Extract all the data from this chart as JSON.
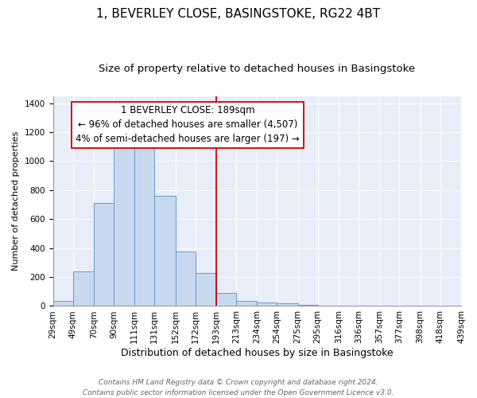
{
  "title": "1, BEVERLEY CLOSE, BASINGSTOKE, RG22 4BT",
  "subtitle": "Size of property relative to detached houses in Basingstoke",
  "xlabel": "Distribution of detached houses by size in Basingstoke",
  "ylabel": "Number of detached properties",
  "bar_left_edges": [
    29,
    49,
    70,
    90,
    111,
    131,
    152,
    172,
    193,
    213,
    234,
    254,
    275,
    295,
    316,
    336,
    357,
    377,
    398,
    418
  ],
  "bar_widths": [
    20,
    21,
    20,
    21,
    20,
    21,
    20,
    21,
    20,
    21,
    20,
    21,
    20,
    21,
    20,
    21,
    20,
    21,
    20,
    21
  ],
  "bar_heights": [
    35,
    240,
    710,
    1100,
    1115,
    760,
    375,
    230,
    90,
    35,
    25,
    20,
    10,
    5,
    0,
    5,
    0,
    0,
    0,
    0
  ],
  "bar_color": "#c8d9ef",
  "bar_edge_color": "#6699cc",
  "vline_x": 193,
  "vline_color": "#cc0000",
  "ylim": [
    0,
    1450
  ],
  "yticks": [
    0,
    200,
    400,
    600,
    800,
    1000,
    1200,
    1400
  ],
  "xtick_labels": [
    "29sqm",
    "49sqm",
    "70sqm",
    "90sqm",
    "111sqm",
    "131sqm",
    "152sqm",
    "172sqm",
    "193sqm",
    "213sqm",
    "234sqm",
    "254sqm",
    "275sqm",
    "295sqm",
    "316sqm",
    "336sqm",
    "357sqm",
    "377sqm",
    "398sqm",
    "418sqm",
    "439sqm"
  ],
  "annotation_title": "1 BEVERLEY CLOSE: 189sqm",
  "annotation_line1": "← 96% of detached houses are smaller (4,507)",
  "annotation_line2": "4% of semi-detached houses are larger (197) →",
  "footer1": "Contains HM Land Registry data © Crown copyright and database right 2024.",
  "footer2": "Contains public sector information licensed under the Open Government Licence v3.0.",
  "plot_bg_color": "#e8eef7",
  "fig_bg_color": "#ffffff",
  "grid_color": "#ffffff",
  "title_fontsize": 11,
  "subtitle_fontsize": 9.5,
  "xlabel_fontsize": 9,
  "ylabel_fontsize": 8,
  "tick_fontsize": 7.5,
  "annotation_fontsize": 8.5,
  "footer_fontsize": 6.5
}
